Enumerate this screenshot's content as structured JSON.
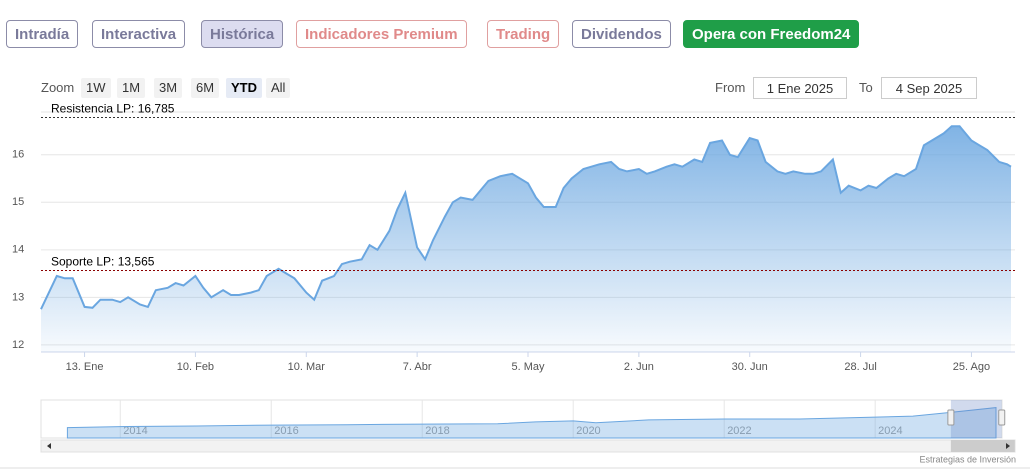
{
  "tabs": [
    "Intradía",
    "Interactiva",
    "Histórica",
    "Indicadores Premium",
    "Trading",
    "Dividendos",
    "Opera con Freedom24"
  ],
  "zoom": {
    "label": "Zoom",
    "buttons": [
      "1W",
      "1M",
      "3M",
      "6M",
      "YTD",
      "All"
    ]
  },
  "range": {
    "from_label": "From",
    "from": "1 Ene 2025",
    "to_label": "To",
    "to": "4 Sep 2025"
  },
  "chart_data": {
    "type": "area",
    "color": "#6aa6e0",
    "grid": true,
    "xlim": [
      "2025-01-02",
      "2025-09-05"
    ],
    "xticks": [
      {
        "value": "2025-01-13",
        "label": "13. Ene"
      },
      {
        "value": "2025-02-10",
        "label": "10. Feb"
      },
      {
        "value": "2025-03-10",
        "label": "10. Mar"
      },
      {
        "value": "2025-04-07",
        "label": "7. Abr"
      },
      {
        "value": "2025-05-05",
        "label": "5. May"
      },
      {
        "value": "2025-06-02",
        "label": "2. Jun"
      },
      {
        "value": "2025-06-30",
        "label": "30. Jun"
      },
      {
        "value": "2025-07-28",
        "label": "28. Jul"
      },
      {
        "value": "2025-08-25",
        "label": "25. Ago"
      }
    ],
    "ylim": [
      11.85,
      16.9
    ],
    "yticks": [
      12,
      13,
      14,
      15,
      16
    ],
    "plot_lines": [
      {
        "label": "Resistencia LP: 16,785",
        "value": 16.785,
        "color": "#333333"
      },
      {
        "label": "Soporte LP: 13,565",
        "value": 13.565,
        "color": "#8b0000"
      }
    ],
    "x": [
      "2025-01-02",
      "2025-01-06",
      "2025-01-08",
      "2025-01-10",
      "2025-01-13",
      "2025-01-15",
      "2025-01-17",
      "2025-01-20",
      "2025-01-22",
      "2025-01-24",
      "2025-01-27",
      "2025-01-29",
      "2025-01-31",
      "2025-02-03",
      "2025-02-05",
      "2025-02-07",
      "2025-02-10",
      "2025-02-12",
      "2025-02-14",
      "2025-02-17",
      "2025-02-19",
      "2025-02-21",
      "2025-02-24",
      "2025-02-26",
      "2025-02-28",
      "2025-03-03",
      "2025-03-05",
      "2025-03-07",
      "2025-03-10",
      "2025-03-12",
      "2025-03-14",
      "2025-03-17",
      "2025-03-19",
      "2025-03-21",
      "2025-03-24",
      "2025-03-26",
      "2025-03-28",
      "2025-03-31",
      "2025-04-02",
      "2025-04-04",
      "2025-04-07",
      "2025-04-09",
      "2025-04-11",
      "2025-04-14",
      "2025-04-16",
      "2025-04-18",
      "2025-04-21",
      "2025-04-23",
      "2025-04-25",
      "2025-04-28",
      "2025-05-01",
      "2025-05-05",
      "2025-05-07",
      "2025-05-09",
      "2025-05-12",
      "2025-05-14",
      "2025-05-16",
      "2025-05-19",
      "2025-05-21",
      "2025-05-23",
      "2025-05-26",
      "2025-05-28",
      "2025-05-30",
      "2025-06-02",
      "2025-06-04",
      "2025-06-06",
      "2025-06-09",
      "2025-06-11",
      "2025-06-13",
      "2025-06-16",
      "2025-06-18",
      "2025-06-20",
      "2025-06-23",
      "2025-06-25",
      "2025-06-27",
      "2025-06-30",
      "2025-07-02",
      "2025-07-04",
      "2025-07-07",
      "2025-07-09",
      "2025-07-11",
      "2025-07-14",
      "2025-07-16",
      "2025-07-18",
      "2025-07-21",
      "2025-07-23",
      "2025-07-25",
      "2025-07-28",
      "2025-07-30",
      "2025-08-01",
      "2025-08-04",
      "2025-08-06",
      "2025-08-08",
      "2025-08-11",
      "2025-08-13",
      "2025-08-15",
      "2025-08-18",
      "2025-08-20",
      "2025-08-22",
      "2025-08-25",
      "2025-08-27",
      "2025-08-29",
      "2025-09-01",
      "2025-09-03",
      "2025-09-04"
    ],
    "values": [
      12.75,
      13.45,
      13.4,
      13.4,
      12.8,
      12.78,
      12.95,
      12.95,
      12.9,
      13.0,
      12.85,
      12.8,
      13.15,
      13.2,
      13.3,
      13.25,
      13.45,
      13.2,
      13.0,
      13.15,
      13.05,
      13.05,
      13.1,
      13.15,
      13.45,
      13.6,
      13.5,
      13.4,
      13.1,
      12.95,
      13.35,
      13.45,
      13.7,
      13.75,
      13.8,
      14.1,
      14.0,
      14.4,
      14.85,
      15.2,
      14.05,
      13.8,
      14.2,
      14.7,
      15.0,
      15.1,
      15.05,
      15.25,
      15.45,
      15.55,
      15.6,
      15.4,
      15.1,
      14.9,
      14.9,
      15.3,
      15.5,
      15.7,
      15.75,
      15.8,
      15.85,
      15.7,
      15.65,
      15.7,
      15.6,
      15.65,
      15.75,
      15.8,
      15.75,
      15.9,
      15.85,
      16.25,
      16.3,
      16.0,
      15.95,
      16.35,
      16.3,
      15.85,
      15.65,
      15.6,
      15.65,
      15.6,
      15.6,
      15.65,
      15.9,
      15.2,
      15.35,
      15.25,
      15.35,
      15.3,
      15.5,
      15.6,
      15.55,
      15.7,
      16.2,
      16.3,
      16.45,
      16.6,
      16.6,
      16.3,
      16.2,
      16.1,
      15.85,
      15.8,
      15.75
    ]
  },
  "navigator": {
    "xlim": [
      2012.95,
      2025.68
    ],
    "xticks": [
      2014,
      2016,
      2018,
      2020,
      2022,
      2024
    ],
    "ylim": [
      0,
      20
    ],
    "x": [
      2013.3,
      2014,
      2015,
      2016,
      2017,
      2018,
      2019,
      2019.5,
      2020,
      2020.3,
      2021,
      2022,
      2023,
      2024,
      2024.5,
      2025,
      2025.6
    ],
    "values": [
      5.5,
      6,
      6.3,
      6.8,
      7,
      7.3,
      7.5,
      8.5,
      9,
      8,
      9.5,
      10,
      10,
      11,
      11.5,
      13.5,
      16
    ]
  },
  "credits": "Estrategias de Inversión"
}
